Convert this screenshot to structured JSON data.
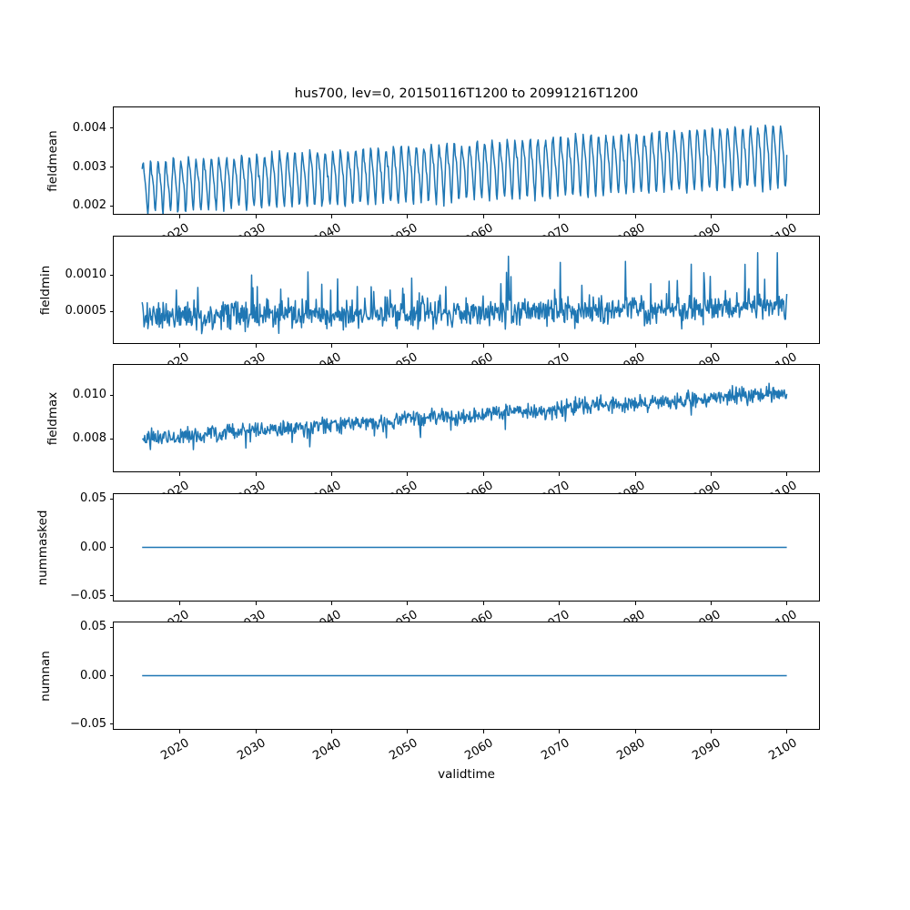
{
  "figure": {
    "title": "hus700, lev=0, 20150116T1200 to 20991216T1200",
    "xlabel": "validtime",
    "background": "#ffffff",
    "axis_color": "#000000"
  },
  "chart_data": {
    "type": "line",
    "title": "hus700, lev=0, 20150116T1200 to 20991216T1200",
    "xlabel": "validtime",
    "legend": "none",
    "grid": "off",
    "line_color": "#1f77b4",
    "xlim": [
      2011.3,
      2104.2
    ],
    "x_start": 2015.042,
    "x_end": 2099.958,
    "n_points": 1020,
    "sampling": "monthly",
    "x_tick_labels": [
      "2020",
      "2030",
      "2040",
      "2050",
      "2060",
      "2070",
      "2080",
      "2090",
      "2100"
    ],
    "x_tick_values": [
      2020,
      2030,
      2040,
      2050,
      2060,
      2070,
      2080,
      2090,
      2100
    ],
    "x_tick_rotation_deg": 30,
    "subplots": [
      {
        "ylabel": "fieldmean",
        "ytick_labels": [
          "0.004",
          "0.003",
          "0.002"
        ],
        "ytick_values": [
          0.004,
          0.003,
          0.002
        ],
        "ylim": [
          0.00179,
          0.00454
        ],
        "series": {
          "pattern": "seasonal_trend",
          "base_start": 0.00252,
          "base_end": 0.00335,
          "amp_start": 0.00062,
          "amp_end": 0.00078,
          "noise_sd": 9e-05,
          "period_points": 12,
          "description": "annual oscillation ~0.0020-0.0033 in 2015 rising to ~0.0026-0.0044 by 2100"
        }
      },
      {
        "ylabel": "fieldmin",
        "ytick_labels": [
          "0.0010",
          "0.0005"
        ],
        "ytick_values": [
          0.001,
          0.0005
        ],
        "ylim": [
          6.25e-05,
          0.001525
        ],
        "series": {
          "pattern": "noisy_trend",
          "base_start": 0.00042,
          "base_end": 0.00055,
          "noise_sd": 0.00016,
          "spike_prob": 0.06,
          "spike_max": 0.0007,
          "clamp_min": 0.00014,
          "clamp_max": 0.00148,
          "description": "irregular noise centred near 0.0005 with spikes toward 0.0012-0.0015"
        }
      },
      {
        "ylabel": "fieldmax",
        "ytick_labels": [
          "0.010",
          "0.008"
        ],
        "ytick_values": [
          0.01,
          0.008
        ],
        "ylim": [
          0.0065,
          0.011375
        ],
        "series": {
          "pattern": "noisy_trend",
          "base_start": 0.008,
          "base_end": 0.0101,
          "noise_sd": 0.00033,
          "dip_prob": 0.03,
          "dip_max": 0.001,
          "clamp_min": 0.00662,
          "clamp_max": 0.01118,
          "description": "noisy rise from ~0.008 in 2015 to ~0.0101 by 2100"
        }
      },
      {
        "ylabel": "nummasked",
        "ytick_labels": [
          "0.05",
          "0.00",
          "−0.05"
        ],
        "ytick_values": [
          0.05,
          0.0,
          -0.05
        ],
        "ylim": [
          -0.055,
          0.055
        ],
        "series": {
          "pattern": "constant",
          "value": 0,
          "description": "flat line at 0"
        }
      },
      {
        "ylabel": "numnan",
        "ytick_labels": [
          "0.05",
          "0.00",
          "−0.05"
        ],
        "ytick_values": [
          0.05,
          0.0,
          -0.05
        ],
        "ylim": [
          -0.055,
          0.055
        ],
        "series": {
          "pattern": "constant",
          "value": 0,
          "description": "flat line at 0"
        }
      }
    ]
  }
}
